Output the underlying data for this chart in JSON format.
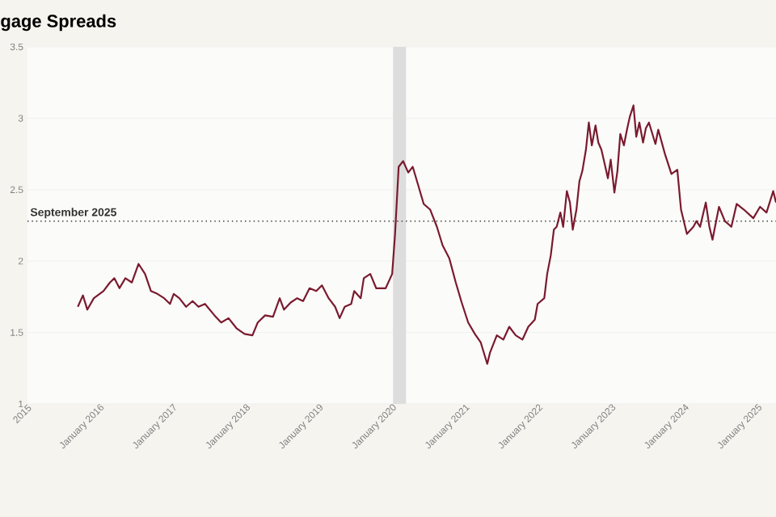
{
  "chart_data": {
    "type": "line",
    "title": "gage Spreads",
    "x": [
      "2015-09-09",
      "2015-10-04",
      "2015-10-26",
      "2015-11-28",
      "2016-01-15",
      "2016-02-17",
      "2016-03-09",
      "2016-04-04",
      "2016-05-03",
      "2016-06-05",
      "2016-07-08",
      "2016-08-10",
      "2016-09-09",
      "2016-10-11",
      "2016-11-14",
      "2016-12-13",
      "2017-01-01",
      "2017-01-29",
      "2017-03-02",
      "2017-04-04",
      "2017-05-03",
      "2017-06-05",
      "2017-07-22",
      "2017-08-25",
      "2017-10-01",
      "2017-11-10",
      "2017-12-20",
      "2018-01-29",
      "2018-02-25",
      "2018-04-01",
      "2018-05-10",
      "2018-06-13",
      "2018-07-04",
      "2018-08-07",
      "2018-09-09",
      "2018-10-08",
      "2018-11-10",
      "2018-12-13",
      "2019-01-11",
      "2019-02-14",
      "2019-03-16",
      "2019-04-08",
      "2019-05-03",
      "2019-06-05",
      "2019-06-20",
      "2019-07-22",
      "2019-08-07",
      "2019-09-09",
      "2019-10-08",
      "2019-11-25",
      "2019-12-27",
      "2020-01-11",
      "2020-01-29",
      "2020-02-21",
      "2020-03-16",
      "2020-04-08",
      "2020-05-03",
      "2020-06-02",
      "2020-07-04",
      "2020-08-07",
      "2020-09-05",
      "2020-10-08",
      "2020-11-10",
      "2020-12-09",
      "2021-01-11",
      "2021-02-14",
      "2021-03-13",
      "2021-04-15",
      "2021-04-29",
      "2021-06-02",
      "2021-07-04",
      "2021-08-03",
      "2021-09-05",
      "2021-10-08",
      "2021-11-07",
      "2021-12-09",
      "2021-12-23",
      "2022-01-26",
      "2022-02-10",
      "2022-02-28",
      "2022-03-13",
      "2022-03-27",
      "2022-04-15",
      "2022-04-29",
      "2022-05-17",
      "2022-06-02",
      "2022-06-16",
      "2022-07-04",
      "2022-07-19",
      "2022-08-03",
      "2022-08-21",
      "2022-09-05",
      "2022-09-20",
      "2022-10-08",
      "2022-10-22",
      "2022-11-07",
      "2022-11-25",
      "2022-12-09",
      "2022-12-23",
      "2023-01-11",
      "2023-01-26",
      "2023-02-10",
      "2023-02-28",
      "2023-03-13",
      "2023-03-27",
      "2023-04-15",
      "2023-04-29",
      "2023-05-14",
      "2023-06-02",
      "2023-06-16",
      "2023-07-01",
      "2023-08-03",
      "2023-08-17",
      "2023-09-20",
      "2023-10-22",
      "2023-11-21",
      "2023-12-09",
      "2024-01-08",
      "2024-02-10",
      "2024-02-25",
      "2024-03-13",
      "2024-04-11",
      "2024-04-29",
      "2024-05-14",
      "2024-06-16",
      "2024-07-15",
      "2024-08-17",
      "2024-09-13",
      "2024-10-19",
      "2024-12-05",
      "2025-01-08",
      "2025-02-10",
      "2025-03-13",
      "2025-03-27"
    ],
    "series": [
      {
        "color": "#7a1a2e",
        "values": [
          1.68,
          1.76,
          1.66,
          1.74,
          1.79,
          1.85,
          1.88,
          1.81,
          1.88,
          1.85,
          1.98,
          1.91,
          1.79,
          1.77,
          1.74,
          1.7,
          1.77,
          1.74,
          1.68,
          1.72,
          1.68,
          1.7,
          1.62,
          1.57,
          1.6,
          1.53,
          1.49,
          1.48,
          1.57,
          1.62,
          1.61,
          1.74,
          1.66,
          1.71,
          1.74,
          1.72,
          1.81,
          1.79,
          1.83,
          1.74,
          1.68,
          1.6,
          1.68,
          1.7,
          1.79,
          1.74,
          1.88,
          1.91,
          1.81,
          1.81,
          1.91,
          2.19,
          2.66,
          2.7,
          2.62,
          2.66,
          2.54,
          2.4,
          2.36,
          2.24,
          2.11,
          2.02,
          1.85,
          1.71,
          1.57,
          1.49,
          1.43,
          1.28,
          1.36,
          1.48,
          1.45,
          1.54,
          1.48,
          1.45,
          1.54,
          1.59,
          1.7,
          1.74,
          1.91,
          2.04,
          2.22,
          2.24,
          2.34,
          2.24,
          2.49,
          2.41,
          2.22,
          2.36,
          2.56,
          2.63,
          2.78,
          2.97,
          2.81,
          2.95,
          2.83,
          2.78,
          2.67,
          2.58,
          2.71,
          2.48,
          2.63,
          2.89,
          2.81,
          2.92,
          3.01,
          3.09,
          2.87,
          2.97,
          2.83,
          2.93,
          2.97,
          2.82,
          2.92,
          2.75,
          2.61,
          2.64,
          2.36,
          2.19,
          2.24,
          2.28,
          2.24,
          2.41,
          2.24,
          2.15,
          2.38,
          2.28,
          2.24,
          2.4,
          2.36,
          2.3,
          2.38,
          2.34,
          2.49,
          2.41
        ]
      }
    ],
    "xlim": [
      "2015-01-01",
      "2025-03-27"
    ],
    "xticks": [
      {
        "value": "2015-01-01",
        "label": "2015"
      },
      {
        "value": "2016-01-01",
        "label": "January 2016"
      },
      {
        "value": "2017-01-01",
        "label": "January 2017"
      },
      {
        "value": "2018-01-01",
        "label": "January 2018"
      },
      {
        "value": "2019-01-01",
        "label": "January 2019"
      },
      {
        "value": "2020-01-01",
        "label": "January 2020"
      },
      {
        "value": "2021-01-01",
        "label": "January 2021"
      },
      {
        "value": "2022-01-01",
        "label": "January 2022"
      },
      {
        "value": "2023-01-01",
        "label": "January 2023"
      },
      {
        "value": "2024-01-01",
        "label": "January 2024"
      },
      {
        "value": "2025-01-01",
        "label": "January 2025"
      }
    ],
    "ylim": [
      1,
      3.5
    ],
    "yticks": [
      1,
      1.5,
      2,
      2.5,
      3,
      3.5
    ],
    "grid": "y",
    "marker": "none",
    "line_style": "solid",
    "ref_lines": [
      {
        "axis": "y",
        "value": 2.28,
        "label": "September 2025",
        "color": "#333333",
        "line_style": "dotted"
      }
    ],
    "bands": [
      {
        "axis": "x",
        "from": "2020-01-01",
        "to": "2020-03-05",
        "color": "#dddddd"
      }
    ]
  }
}
